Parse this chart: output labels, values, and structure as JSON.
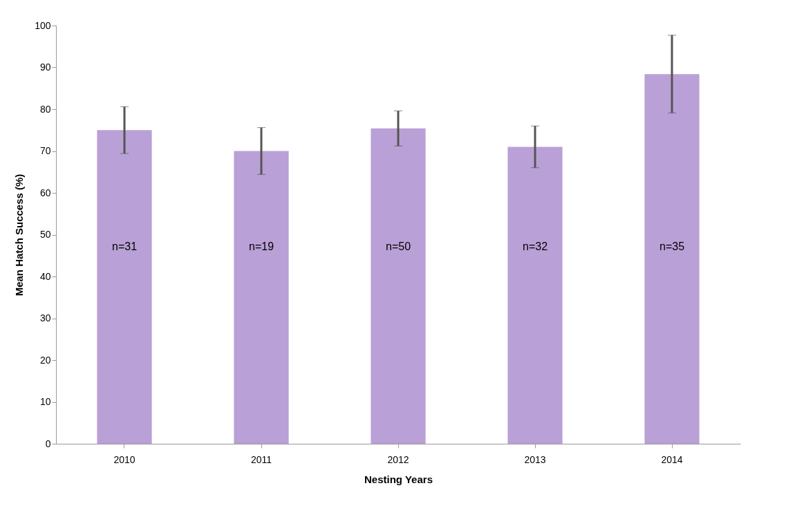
{
  "chart_data": {
    "type": "bar",
    "xlabel": "Nesting Years",
    "ylabel": "Mean Hatch Success (%)",
    "categories": [
      "2010",
      "2011",
      "2012",
      "2013",
      "2014"
    ],
    "values": [
      75,
      70,
      75.4,
      71,
      88.4
    ],
    "errors": [
      5.6,
      5.6,
      4.2,
      5,
      9.3
    ],
    "color": "#b9a0d6",
    "ylim": [
      0,
      100
    ],
    "yticks": [
      0,
      10,
      20,
      30,
      40,
      50,
      60,
      70,
      80,
      90,
      100
    ],
    "grid": false,
    "annotations": [
      "n=31",
      "n=19",
      "n=50",
      "n=32",
      "n=35"
    ]
  }
}
